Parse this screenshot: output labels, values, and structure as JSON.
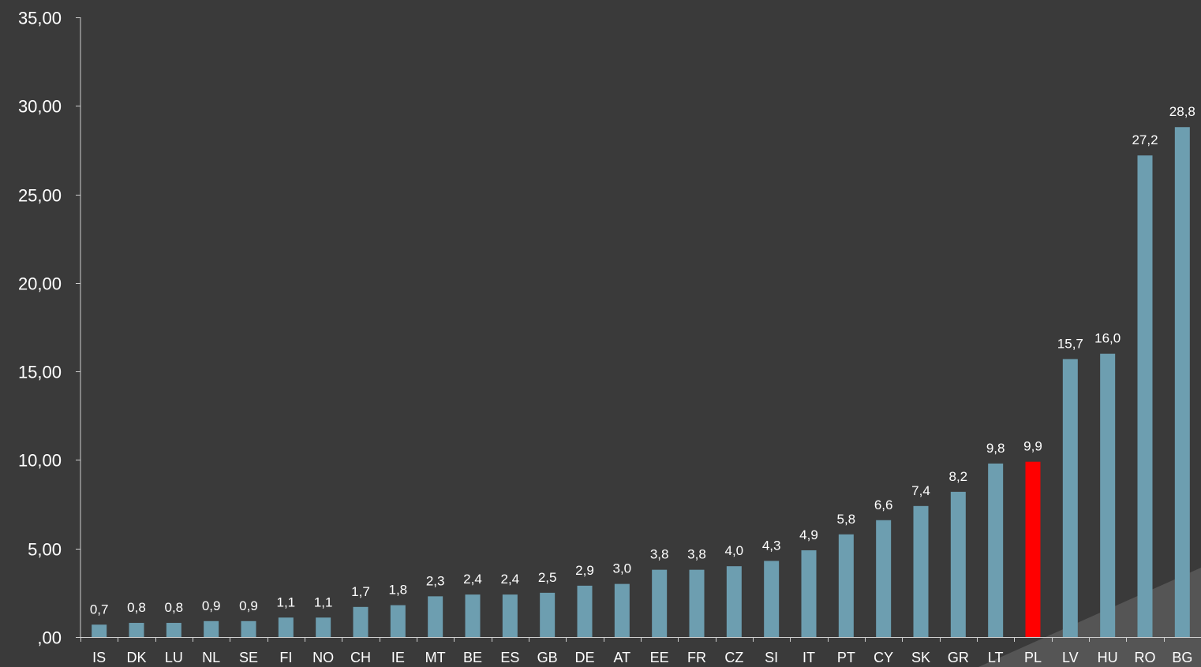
{
  "chart_data": {
    "type": "bar",
    "title": "",
    "xlabel": "",
    "ylabel": "",
    "ylim": [
      0,
      35
    ],
    "y_ticks": [
      {
        "value": 0,
        "label": ",00"
      },
      {
        "value": 5,
        "label": "5,00"
      },
      {
        "value": 10,
        "label": "10,00"
      },
      {
        "value": 15,
        "label": "15,00"
      },
      {
        "value": 20,
        "label": "20,00"
      },
      {
        "value": 25,
        "label": "25,00"
      },
      {
        "value": 30,
        "label": "30,00"
      },
      {
        "value": 35,
        "label": "35,00"
      }
    ],
    "categories": [
      "IS",
      "DK",
      "LU",
      "NL",
      "SE",
      "FI",
      "NO",
      "CH",
      "IE",
      "MT",
      "BE",
      "ES",
      "GB",
      "DE",
      "AT",
      "EE",
      "FR",
      "CZ",
      "SI",
      "IT",
      "PT",
      "CY",
      "SK",
      "GR",
      "LT",
      "PL",
      "LV",
      "HU",
      "RO",
      "BG"
    ],
    "values": [
      0.7,
      0.8,
      0.8,
      0.9,
      0.9,
      1.1,
      1.1,
      1.7,
      1.8,
      2.3,
      2.4,
      2.4,
      2.5,
      2.9,
      3.0,
      3.8,
      3.8,
      4.0,
      4.3,
      4.9,
      5.8,
      6.6,
      7.4,
      8.2,
      9.8,
      9.9,
      15.7,
      16.0,
      27.2,
      28.8
    ],
    "data_labels": [
      "0,7",
      "0,8",
      "0,8",
      "0,9",
      "0,9",
      "1,1",
      "1,1",
      "1,7",
      "1,8",
      "2,3",
      "2,4",
      "2,4",
      "2,5",
      "2,9",
      "3,0",
      "3,8",
      "3,8",
      "4,0",
      "4,3",
      "4,9",
      "5,8",
      "6,6",
      "7,4",
      "8,2",
      "9,8",
      "9,9",
      "15,7",
      "16,0",
      "27,2",
      "28,8"
    ],
    "highlight_category": "PL",
    "grid": false,
    "legend": "none",
    "colors": {
      "background": "#3a3a3a",
      "bar": "#6d9eb0",
      "highlight": "#ff0000",
      "axis": "#cfcfcf",
      "text": "#ffffff",
      "corner_shade": "#555555"
    }
  }
}
